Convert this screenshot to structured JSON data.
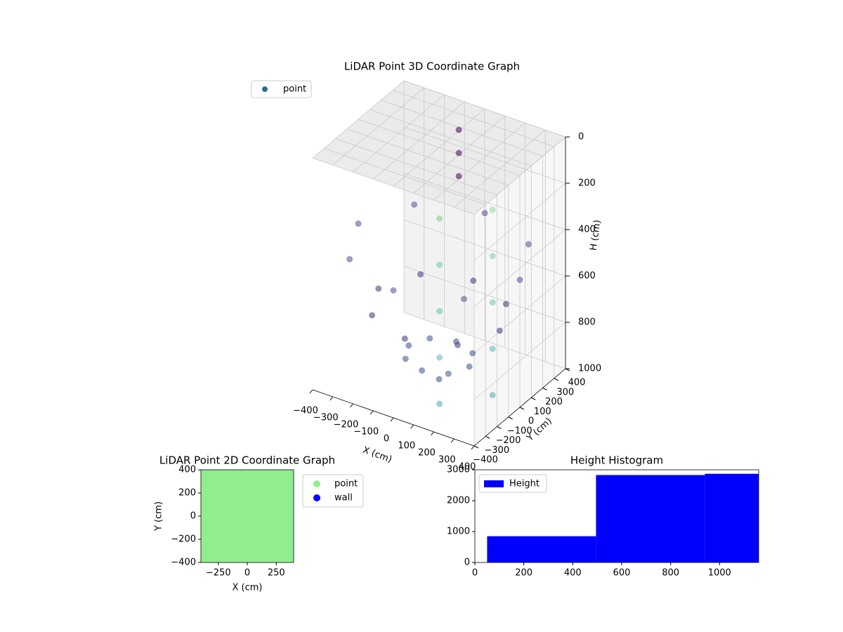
{
  "chart_data": [
    {
      "type": "scatter3d",
      "title": "LiDAR Point 3D Coordinate Graph",
      "xlabel": "X (cm)",
      "ylabel": "Y (cm)",
      "zlabel": "H (cm)",
      "xlim": [
        -400,
        400
      ],
      "ylim": [
        -400,
        400
      ],
      "zlim": [
        0,
        1000
      ],
      "xticks": [
        {
          "value": -400,
          "label": "−400"
        },
        {
          "value": -300,
          "label": "−300"
        },
        {
          "value": -200,
          "label": "−200"
        },
        {
          "value": -100,
          "label": "−100"
        },
        0,
        100,
        200,
        300,
        400
      ],
      "yticks": [
        {
          "value": -400,
          "label": "−400"
        },
        {
          "value": -300,
          "label": "−300"
        },
        {
          "value": -200,
          "label": "−200"
        },
        {
          "value": -100,
          "label": "−100"
        },
        0,
        100,
        200,
        300,
        400
      ],
      "zticks": [
        0,
        200,
        400,
        600,
        800,
        1000
      ],
      "legend": "upper left",
      "series": [
        {
          "name": "point",
          "color": "#2c6e8e",
          "x": [
            0,
            150,
            106,
            0,
            -106,
            -150,
            -106,
            0,
            106,
            300,
            212,
            0,
            -212,
            -300,
            -212,
            0,
            212,
            400,
            283,
            0,
            -283,
            -400,
            -283,
            0,
            283,
            200,
            200,
            200,
            200,
            200,
            350,
            350,
            350,
            350,
            350,
            -100,
            -100,
            -100
          ],
          "y": [
            0,
            0,
            106,
            150,
            106,
            0,
            -106,
            -150,
            -106,
            0,
            212,
            300,
            212,
            0,
            -212,
            -300,
            -212,
            0,
            283,
            400,
            283,
            0,
            -283,
            -400,
            -283,
            -350,
            -350,
            -350,
            -350,
            -350,
            -150,
            -150,
            -150,
            -150,
            -150,
            350,
            350,
            350
          ],
          "z": [
            1000,
            900,
            900,
            900,
            900,
            900,
            900,
            900,
            900,
            700,
            700,
            700,
            700,
            700,
            700,
            700,
            700,
            450,
            450,
            450,
            450,
            450,
            450,
            450,
            450,
            100,
            300,
            500,
            700,
            900,
            100,
            300,
            500,
            700,
            900,
            100,
            200,
            300
          ],
          "colors": [
            "#3b528b",
            "#3b528b",
            "#3b528b",
            "#3b528b",
            "#3b528b",
            "#3b528b",
            "#3b528b",
            "#3b528b",
            "#3b528b",
            "#46327e",
            "#46327e",
            "#46327e",
            "#46327e",
            "#46327e",
            "#46327e",
            "#46327e",
            "#46327e",
            "#5b4a94",
            "#5b4a94",
            "#5b4a94",
            "#5b4a94",
            "#5b4a94",
            "#5b4a94",
            "#5b4a94",
            "#5b4a94",
            "#7fd08a",
            "#6ccba0",
            "#5fc3ad",
            "#5ab8b6",
            "#4fa7b8",
            "#90d79a",
            "#7cd0a5",
            "#6dc6b1",
            "#62b9b9",
            "#58a9bd",
            "#440154",
            "#440154",
            "#440154"
          ]
        }
      ]
    },
    {
      "type": "scatter",
      "title": "LiDAR Point 2D Coordinate Graph",
      "xlabel": "X (cm)",
      "ylabel": "Y (cm)",
      "xlim": [
        -400,
        400
      ],
      "ylim": [
        -400,
        400
      ],
      "xticks": [
        {
          "value": -250,
          "label": "−250"
        },
        0,
        250
      ],
      "yticks": [
        {
          "value": -400,
          "label": "−400"
        },
        {
          "value": -200,
          "label": "−200"
        },
        0,
        200,
        400
      ],
      "legend": "outside right",
      "series": [
        {
          "name": "point",
          "color": "#90ee90",
          "x": [
            -400,
            -300,
            -200,
            -100,
            0,
            100,
            200,
            300,
            400,
            -400,
            -300,
            -200,
            -100,
            0,
            100,
            200,
            300,
            400,
            -400,
            -300,
            -200,
            -100,
            0,
            100,
            200,
            300,
            400,
            -400,
            -300,
            -200,
            -100,
            0,
            100,
            200,
            300,
            400,
            -400,
            -300,
            -200,
            -100,
            0,
            100,
            200,
            300,
            400,
            -400,
            -300,
            -200,
            -100,
            0,
            100,
            200,
            300,
            400,
            -400,
            -300,
            -200,
            -100,
            0,
            100,
            200,
            300,
            400,
            -400,
            -300,
            -200,
            -100,
            0,
            100,
            200,
            300,
            400,
            -400,
            -300,
            -200,
            -100,
            0,
            100,
            200,
            300,
            400
          ],
          "y": [
            -400,
            -400,
            -400,
            -400,
            -400,
            -400,
            -400,
            -400,
            -400,
            -300,
            -300,
            -300,
            -300,
            -300,
            -300,
            -300,
            -300,
            -300,
            -200,
            -200,
            -200,
            -200,
            -200,
            -200,
            -200,
            -200,
            -200,
            -100,
            -100,
            -100,
            -100,
            -100,
            -100,
            -100,
            -100,
            -100,
            0,
            0,
            0,
            0,
            0,
            0,
            0,
            0,
            0,
            100,
            100,
            100,
            100,
            100,
            100,
            100,
            100,
            100,
            200,
            200,
            200,
            200,
            200,
            200,
            200,
            200,
            200,
            300,
            300,
            300,
            300,
            300,
            300,
            300,
            300,
            300,
            400,
            400,
            400,
            400,
            400,
            400,
            400,
            400,
            400
          ]
        },
        {
          "name": "wall",
          "color": "#0000ff",
          "x": [],
          "y": []
        }
      ]
    },
    {
      "type": "histogram",
      "title": "Height Histogram",
      "name": "Height",
      "color": "#0000ff",
      "bins": [
        50,
        495,
        940,
        1160
      ],
      "counts": [
        850,
        2830,
        2870
      ],
      "xlim": [
        0,
        1160
      ],
      "ylim": [
        0,
        3000
      ],
      "xticks": [
        0,
        200,
        400,
        600,
        800,
        1000
      ],
      "yticks": [
        0,
        1000,
        2000,
        3000
      ],
      "legend": "upper left"
    }
  ]
}
